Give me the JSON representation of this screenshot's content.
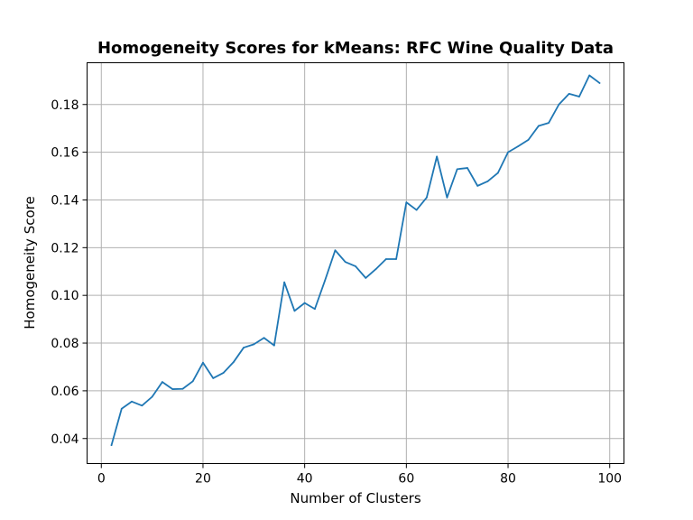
{
  "chart_data": {
    "type": "line",
    "title": "Homogeneity Scores for kMeans: RFC Wine Quality Data",
    "xlabel": "Number of Clusters",
    "ylabel": "Homogeneity Score",
    "xlim": [
      -2.8,
      102.8
    ],
    "ylim": [
      0.0295,
      0.1975
    ],
    "xticks": [
      0,
      20,
      40,
      60,
      80,
      100
    ],
    "yticks": [
      0.04,
      0.06,
      0.08,
      0.1,
      0.12,
      0.14,
      0.16,
      0.18
    ],
    "xtick_labels": [
      "0",
      "20",
      "40",
      "60",
      "80",
      "100"
    ],
    "ytick_labels": [
      "0.04",
      "0.06",
      "0.08",
      "0.10",
      "0.12",
      "0.14",
      "0.16",
      "0.18"
    ],
    "grid": true,
    "series": [
      {
        "color": "#1f77b4",
        "x": [
          2,
          4,
          6,
          8,
          10,
          12,
          14,
          16,
          18,
          20,
          22,
          24,
          26,
          28,
          30,
          32,
          34,
          36,
          38,
          40,
          42,
          44,
          46,
          48,
          50,
          52,
          54,
          56,
          58,
          60,
          62,
          64,
          66,
          68,
          70,
          72,
          74,
          76,
          78,
          80,
          82,
          84,
          86,
          88,
          90,
          92,
          94,
          96,
          98
        ],
        "y": [
          0.0372,
          0.0525,
          0.0555,
          0.0538,
          0.0575,
          0.0637,
          0.0607,
          0.0608,
          0.064,
          0.0718,
          0.0653,
          0.0675,
          0.072,
          0.0781,
          0.0795,
          0.0822,
          0.079,
          0.1055,
          0.0935,
          0.0968,
          0.0943,
          0.1063,
          0.1189,
          0.114,
          0.1122,
          0.1073,
          0.111,
          0.1152,
          0.1152,
          0.139,
          0.1358,
          0.141,
          0.1582,
          0.141,
          0.1529,
          0.1534,
          0.1459,
          0.1478,
          0.1513,
          0.16,
          0.1625,
          0.1652,
          0.171,
          0.1723,
          0.18,
          0.1845,
          0.1833,
          0.1922,
          0.189
        ]
      }
    ]
  }
}
